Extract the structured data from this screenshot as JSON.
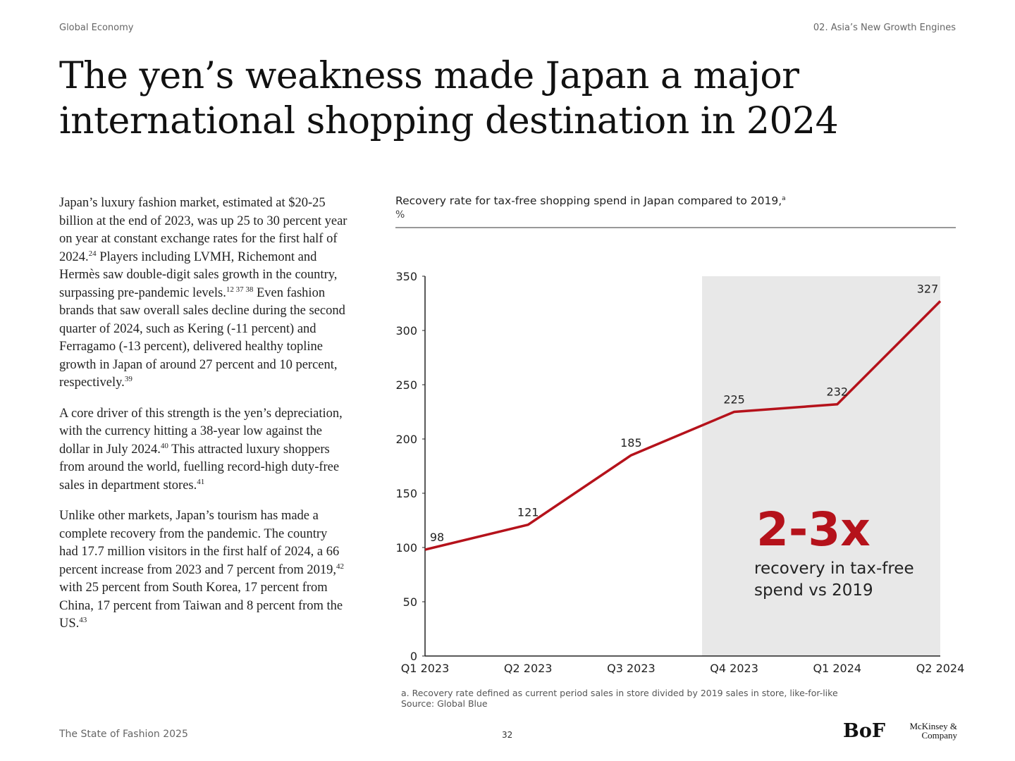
{
  "header": {
    "left": "Global Economy",
    "right": "02. Asia’s New Growth Engines"
  },
  "title": "The yen’s weakness made Japan a major international shopping destination in 2024",
  "body": {
    "paragraphs": [
      {
        "runs": [
          {
            "text": "Japan’s luxury fashion market, estimated at $20-25 billion at the end of 2023, was up 25 to 30 percent year on year at constant exchange rates for the first half of 2024."
          },
          {
            "sup": "24"
          },
          {
            "text": " Players including LVMH, Richemont and Hermès saw double-digit sales growth in the country, surpassing pre-pandemic levels."
          },
          {
            "sup": "12 37 38"
          },
          {
            "text": " Even fashion brands that saw overall sales decline during the second quarter of 2024, such as Kering (-11 percent) and Ferragamo (-13 percent), delivered healthy topline growth in Japan of around 27 percent and 10 percent, respectively."
          },
          {
            "sup": "39"
          }
        ]
      },
      {
        "runs": [
          {
            "text": "A core driver of this strength is the yen’s depreciation, with the currency hitting a 38-year low against the dollar in July 2024."
          },
          {
            "sup": "40"
          },
          {
            "text": " This attracted luxury shoppers from around the world, fuelling record-high duty-free sales in department stores."
          },
          {
            "sup": "41"
          }
        ]
      },
      {
        "runs": [
          {
            "text": "Unlike other markets, Japan’s tourism has made a complete recovery from the pandemic. The country had 17.7 million visitors in the first half of 2024, a 66 percent increase from 2023 and 7 percent from 2019,"
          },
          {
            "sup": "42"
          },
          {
            "text": " with 25 percent from South Korea, 17 percent from China, 17 percent from Taiwan and 8 percent from the US."
          },
          {
            "sup": "43"
          }
        ]
      }
    ]
  },
  "chart_data": {
    "type": "line",
    "title": "Recovery rate for tax-free shopping spend in Japan compared to 2019,",
    "title_note": "a",
    "unit": "%",
    "categories": [
      "Q1 2023",
      "Q2 2023",
      "Q3 2023",
      "Q4 2023",
      "Q1 2024",
      "Q2 2024"
    ],
    "values": [
      98,
      121,
      185,
      225,
      232,
      327
    ],
    "color": "#b5121b",
    "ylim": [
      0,
      350
    ],
    "yticks": [
      0,
      50,
      100,
      150,
      200,
      250,
      300,
      350
    ],
    "annotation": {
      "headline": "2-3x",
      "text": "recovery in tax-free spend vs 2019"
    },
    "footnote": "a. Recovery rate defined as current period sales in store divided by 2019 sales in store, like-for-like",
    "source": "Source: Global Blue"
  },
  "footer": {
    "publication": "The State of Fashion 2025",
    "page": "32",
    "logo_bof": "BoF",
    "logo_mckinsey": "McKinsey & Company"
  }
}
